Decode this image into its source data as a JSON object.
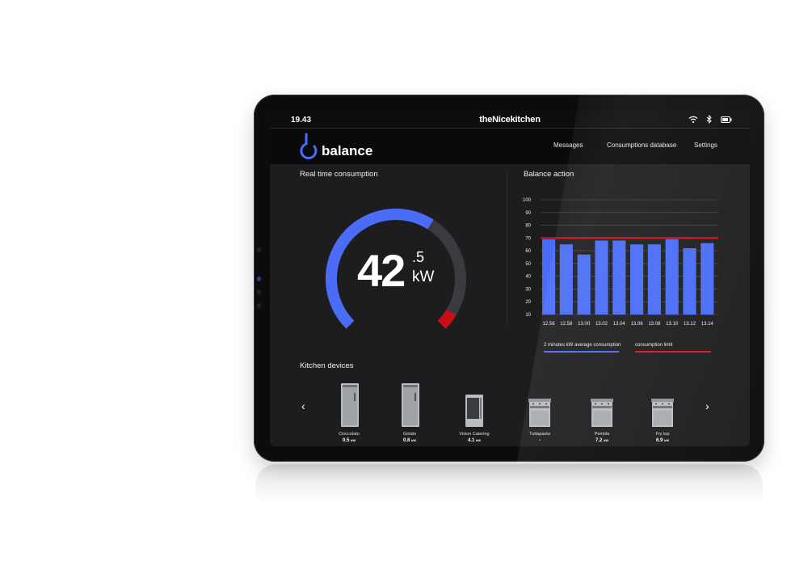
{
  "status": {
    "time": "19.43",
    "brand": "theNicekitchen"
  },
  "nav": {
    "logo_text": "balance",
    "links": [
      "Messages",
      "Consumptions database",
      "Settings"
    ]
  },
  "realtime": {
    "title": "Real time consumption",
    "value_int": "42",
    "value_dec": ".5",
    "unit": "kW",
    "gauge_fraction": 0.62
  },
  "balance": {
    "title": "Balance action",
    "legend_avg": "2 minutes kW average consumption",
    "legend_limit": "consumption limit"
  },
  "chart_data": {
    "type": "bar",
    "categories": [
      "12.56",
      "12.58",
      "13.00",
      "13.02",
      "13.04",
      "13.06",
      "13.08",
      "13.10",
      "13.12",
      "13.14"
    ],
    "values": [
      69,
      65,
      57,
      68,
      68,
      65,
      65,
      69,
      62,
      66
    ],
    "limit": 70,
    "ylim": [
      10,
      100
    ],
    "yticks": [
      10,
      20,
      30,
      40,
      50,
      60,
      70,
      80,
      90,
      100
    ],
    "grid": true,
    "colors": {
      "bar": "#4a6cf7",
      "limit": "#e0141b",
      "grid": "#555555"
    }
  },
  "devices": {
    "title": "Kitchen devices",
    "items": [
      {
        "name": "Cioccolato",
        "value": "0.5",
        "unit": "kW"
      },
      {
        "name": "Gelato",
        "value": "0.8",
        "unit": "kW"
      },
      {
        "name": "Vision Catering",
        "value": "4.1",
        "unit": "kW"
      },
      {
        "name": "Tuttapasta",
        "value": "-",
        "unit": ""
      },
      {
        "name": "Pentola",
        "value": "7.2",
        "unit": "kW"
      },
      {
        "name": "Fry top",
        "value": "6.9",
        "unit": "kW"
      }
    ]
  },
  "colors": {
    "accent": "#4a6cf7",
    "alert": "#d10f1a",
    "track": "#3a3b40"
  }
}
